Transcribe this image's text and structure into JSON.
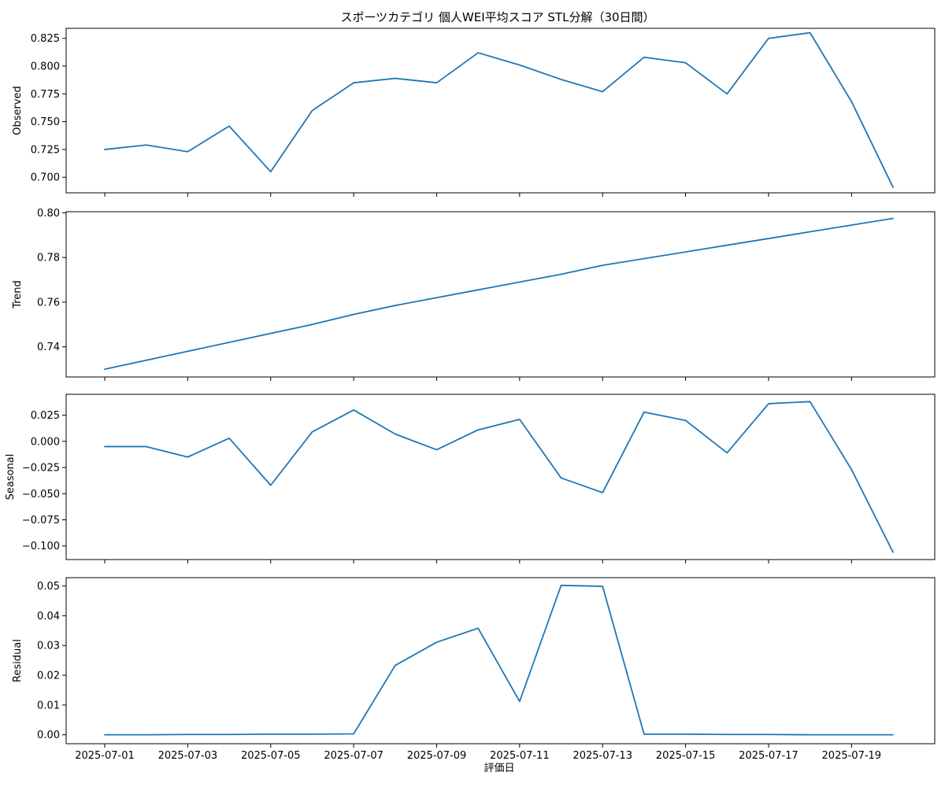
{
  "chart_data": {
    "type": "line",
    "title": "スポーツカテゴリ 個人WEI平均スコア STL分解（30日間）",
    "xlabel": "評価日",
    "line_color": "#1f77b4",
    "x": [
      "2025-07-01",
      "2025-07-02",
      "2025-07-03",
      "2025-07-04",
      "2025-07-05",
      "2025-07-06",
      "2025-07-07",
      "2025-07-08",
      "2025-07-09",
      "2025-07-10",
      "2025-07-11",
      "2025-07-12",
      "2025-07-13",
      "2025-07-14",
      "2025-07-15",
      "2025-07-16",
      "2025-07-17",
      "2025-07-18",
      "2025-07-19",
      "2025-07-20"
    ],
    "x_tick_labels": [
      "2025-07-01",
      "2025-07-03",
      "2025-07-05",
      "2025-07-07",
      "2025-07-09",
      "2025-07-11",
      "2025-07-13",
      "2025-07-15",
      "2025-07-17",
      "2025-07-19"
    ],
    "panels": [
      {
        "name": "Observed",
        "ylabel": "Observed",
        "ylim": [
          0.686,
          0.834
        ],
        "y_ticks": [
          0.7,
          0.725,
          0.75,
          0.775,
          0.8,
          0.825
        ],
        "y_tick_labels": [
          "0.700",
          "0.725",
          "0.750",
          "0.775",
          "0.800",
          "0.825"
        ],
        "values": [
          0.725,
          0.729,
          0.723,
          0.746,
          0.705,
          0.76,
          0.785,
          0.789,
          0.785,
          0.812,
          0.801,
          0.788,
          0.777,
          0.808,
          0.803,
          0.775,
          0.825,
          0.83,
          0.768,
          0.691
        ]
      },
      {
        "name": "Trend",
        "ylabel": "Trend",
        "ylim": [
          0.7265,
          0.8005
        ],
        "y_ticks": [
          0.74,
          0.76,
          0.78,
          0.8
        ],
        "y_tick_labels": [
          "0.74",
          "0.76",
          "0.78",
          "0.80"
        ],
        "values": [
          0.73,
          0.734,
          0.738,
          0.742,
          0.746,
          0.75,
          0.7545,
          0.7585,
          0.762,
          0.7655,
          0.769,
          0.7725,
          0.7765,
          0.7795,
          0.7825,
          0.7855,
          0.7885,
          0.7915,
          0.7945,
          0.7975
        ]
      },
      {
        "name": "Seasonal",
        "ylabel": "Seasonal",
        "ylim": [
          -0.113,
          0.045
        ],
        "y_ticks": [
          -0.1,
          -0.075,
          -0.05,
          -0.025,
          0.0,
          0.025
        ],
        "y_tick_labels": [
          "−0.100",
          "−0.075",
          "−0.050",
          "−0.025",
          "0.000",
          "0.025"
        ],
        "values": [
          -0.005,
          -0.005,
          -0.015,
          0.003,
          -0.042,
          0.009,
          0.03,
          0.007,
          -0.008,
          0.011,
          0.021,
          -0.035,
          -0.049,
          0.028,
          0.02,
          -0.011,
          0.036,
          0.038,
          -0.027,
          -0.106
        ]
      },
      {
        "name": "Residual",
        "ylabel": "Residual",
        "ylim": [
          -0.003,
          0.0528
        ],
        "y_ticks": [
          0.0,
          0.01,
          0.02,
          0.03,
          0.04,
          0.05
        ],
        "y_tick_labels": [
          "0.00",
          "0.01",
          "0.02",
          "0.03",
          "0.04",
          "0.05"
        ],
        "values": [
          0.0,
          0.0,
          0.0001,
          0.0001,
          0.0002,
          0.0002,
          0.0003,
          0.0233,
          0.0311,
          0.0358,
          0.0112,
          0.0502,
          0.0499,
          0.0002,
          0.0002,
          0.0001,
          0.0001,
          0.0,
          0.0,
          0.0
        ]
      }
    ]
  }
}
